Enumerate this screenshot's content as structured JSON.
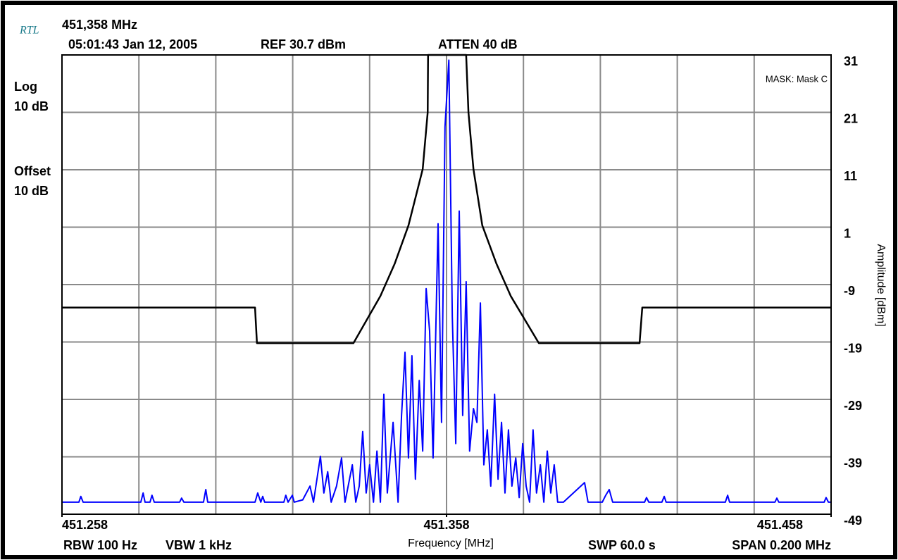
{
  "header": {
    "logo": "RTL",
    "center_frequency": "451,358 MHz",
    "timestamp": "05:01:43 Jan 12, 2005",
    "reference": "REF 30.7 dBm",
    "attenuation": "ATTEN 40 dB",
    "scale_type": "Log",
    "scale": "10 dB",
    "offset_label": "Offset",
    "offset": "10 dB",
    "mask": "MASK: Mask C"
  },
  "footer": {
    "rbw": "RBW 100 Hz",
    "vbw": "VBW 1 kHz",
    "sweep": "SWP 60.0 s",
    "span": "SPAN 0.200 MHz"
  },
  "chart_data": {
    "type": "line",
    "xlabel": "Frequency [MHz]",
    "ylabel": "Amplitude [dBm]",
    "xlim": [
      451.258,
      451.458
    ],
    "xticks": [
      451.258,
      451.358,
      451.458
    ],
    "ylim": [
      -49,
      31
    ],
    "yticks": [
      31,
      21,
      11,
      1,
      -9,
      -19,
      -29,
      -39,
      -49
    ],
    "grid": true,
    "series": [
      {
        "color": "#000000",
        "x": [
          451.258,
          451.3082,
          451.3087,
          451.3338,
          451.3408,
          451.3445,
          451.3481,
          451.3518,
          451.3531,
          451.3532,
          451.3631,
          451.3637,
          451.365,
          451.3673,
          451.371,
          451.3747,
          451.382,
          451.4082,
          451.4089,
          451.458
        ],
        "values": [
          -13,
          -13,
          -19.2,
          -19.2,
          -11,
          -5.4,
          1.3,
          11.1,
          21,
          31,
          31,
          21,
          11.1,
          1.3,
          -5.4,
          -11,
          -19.2,
          -19.2,
          -13,
          -13
        ]
      },
      {
        "color": "#0000ff",
        "x": [
          451.258,
          451.2624,
          451.2629,
          451.2635,
          451.2785,
          451.2791,
          451.2796,
          451.2809,
          451.2814,
          451.282,
          451.2886,
          451.2891,
          451.2897,
          451.2948,
          451.2954,
          451.2959,
          451.3082,
          451.3089,
          451.3097,
          451.3102,
          451.3107,
          451.3133,
          451.3157,
          451.3162,
          451.3168,
          451.3179,
          451.3184,
          451.3206,
          451.3225,
          451.3234,
          451.3252,
          451.3261,
          451.3271,
          451.328,
          451.3294,
          451.3307,
          451.3316,
          451.3335,
          451.3344,
          451.3353,
          451.3362,
          451.3371,
          451.338,
          451.339,
          451.3399,
          451.3408,
          451.3417,
          451.3426,
          451.3441,
          451.3454,
          451.3463,
          451.3472,
          451.3481,
          451.349,
          451.3499,
          451.3509,
          451.3518,
          451.3527,
          451.3536,
          451.3545,
          451.3558,
          451.3567,
          451.3576,
          451.3586,
          451.3595,
          451.3604,
          451.3613,
          451.3622,
          451.3631,
          451.364,
          451.365,
          451.3659,
          451.3668,
          451.3677,
          451.3686,
          451.3695,
          451.3705,
          451.3714,
          451.3723,
          451.3732,
          451.3741,
          451.375,
          451.376,
          451.3769,
          451.3778,
          451.3787,
          451.3796,
          451.3805,
          451.3814,
          451.3824,
          451.3833,
          451.3842,
          451.3851,
          451.386,
          451.3869,
          451.3884,
          451.3939,
          451.3948,
          451.3985,
          451.3994,
          451.4003,
          451.4012,
          451.4095,
          451.41,
          451.4106,
          451.414,
          451.4146,
          451.4151,
          451.4305,
          451.4311,
          451.4316,
          451.4434,
          451.4439,
          451.4444,
          451.4562,
          451.4567,
          451.4573,
          451.458
        ],
        "values": [
          -46.9,
          -46.9,
          -45.9,
          -46.9,
          -46.9,
          -45.3,
          -46.9,
          -46.9,
          -45.7,
          -46.9,
          -46.9,
          -46.2,
          -46.9,
          -46.9,
          -44.7,
          -46.9,
          -46.9,
          -45.3,
          -46.9,
          -45.9,
          -46.9,
          -46.9,
          -46.9,
          -45.7,
          -46.9,
          -45.7,
          -46.9,
          -46.5,
          -44.1,
          -46.9,
          -38.9,
          -45.3,
          -41.6,
          -46.9,
          -44.1,
          -39.2,
          -46.9,
          -40.4,
          -46.9,
          -44.1,
          -34.6,
          -45.3,
          -40.4,
          -46.9,
          -38,
          -46.9,
          -28.1,
          -45.3,
          -33,
          -46.9,
          -31.8,
          -20.8,
          -39.2,
          -21.4,
          -42.9,
          -25.7,
          -38,
          -9.7,
          -17.1,
          -39.2,
          1.6,
          -33,
          18.5,
          30.1,
          -14.6,
          -36.7,
          3.8,
          -31.8,
          -8.5,
          -38,
          -30.6,
          -33,
          -12.2,
          -40.4,
          -34.3,
          -44.1,
          -28.1,
          -42.9,
          -33,
          -45.3,
          -34.3,
          -44.1,
          -39.2,
          -46.1,
          -36.7,
          -44.1,
          -46.9,
          -34.3,
          -45.3,
          -40.4,
          -46.9,
          -38,
          -45.3,
          -40.4,
          -46.9,
          -46.9,
          -43.5,
          -46.9,
          -46.9,
          -45.7,
          -44.7,
          -46.9,
          -46.9,
          -46.1,
          -46.9,
          -46.9,
          -45.9,
          -46.9,
          -46.9,
          -45.7,
          -46.9,
          -46.9,
          -46.2,
          -46.9,
          -46.9,
          -46.1,
          -46.9,
          -46.9
        ]
      }
    ]
  }
}
